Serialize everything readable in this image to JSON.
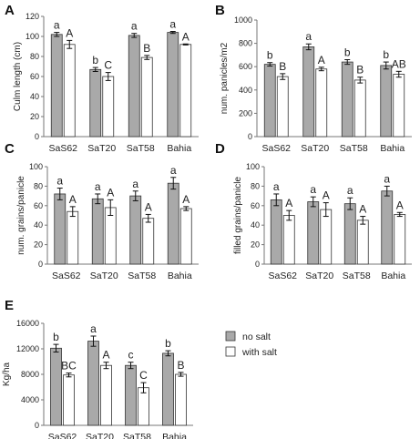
{
  "legend": {
    "entries": [
      {
        "label": "no salt",
        "color": "#a9a9a9"
      },
      {
        "label": "with salt",
        "color": "#ffffff"
      }
    ]
  },
  "chart_data": [
    {
      "panel": "A",
      "type": "bar",
      "categories": [
        "SaS62",
        "SaT20",
        "SaT58",
        "Bahia"
      ],
      "ylabel": "Culm length (cm)",
      "ylim": [
        0,
        120
      ],
      "yticks": [
        0,
        20,
        40,
        60,
        80,
        100,
        120
      ],
      "series": [
        {
          "name": "no salt",
          "color": "#a9a9a9",
          "values": [
            102,
            67,
            101,
            104
          ],
          "errors": [
            2,
            2,
            2,
            1
          ],
          "labels": [
            "a",
            "b",
            "a",
            "a"
          ]
        },
        {
          "name": "with salt",
          "color": "#ffffff",
          "values": [
            92,
            60,
            79,
            92
          ],
          "errors": [
            4,
            4,
            2,
            0.5
          ],
          "labels": [
            "A",
            "C",
            "B",
            "A"
          ]
        }
      ]
    },
    {
      "panel": "B",
      "type": "bar",
      "categories": [
        "SaS62",
        "SaT20",
        "SaT58",
        "Bahia"
      ],
      "ylabel": "num. panicles/m2",
      "ylim": [
        0,
        1000
      ],
      "yticks": [
        0,
        200,
        400,
        600,
        800,
        1000
      ],
      "series": [
        {
          "name": "no salt",
          "color": "#a9a9a9",
          "values": [
            620,
            770,
            640,
            610
          ],
          "errors": [
            15,
            25,
            20,
            30
          ],
          "labels": [
            "b",
            "a",
            "b",
            "b"
          ]
        },
        {
          "name": "with salt",
          "color": "#ffffff",
          "values": [
            515,
            580,
            485,
            535
          ],
          "errors": [
            25,
            15,
            25,
            25
          ],
          "labels": [
            "B",
            "A",
            "B",
            "AB"
          ]
        }
      ]
    },
    {
      "panel": "C",
      "type": "bar",
      "categories": [
        "SaS62",
        "SaT20",
        "SaT58",
        "Bahia"
      ],
      "ylabel": "num. grains/panicle",
      "ylim": [
        0,
        100
      ],
      "yticks": [
        0,
        20,
        40,
        60,
        80,
        100
      ],
      "series": [
        {
          "name": "no salt",
          "color": "#a9a9a9",
          "values": [
            72,
            67,
            70,
            83
          ],
          "errors": [
            6,
            5,
            5,
            6
          ],
          "labels": [
            "a",
            "a",
            "a",
            "a"
          ]
        },
        {
          "name": "with salt",
          "color": "#ffffff",
          "values": [
            54,
            58,
            47,
            57
          ],
          "errors": [
            5,
            8,
            4,
            2
          ],
          "labels": [
            "A",
            "A",
            "A",
            "A"
          ]
        }
      ]
    },
    {
      "panel": "D",
      "type": "bar",
      "categories": [
        "SaS62",
        "SaT20",
        "SaT58",
        "Bahia"
      ],
      "ylabel": "filled grains/panicle",
      "ylim": [
        0,
        100
      ],
      "yticks": [
        0,
        20,
        40,
        60,
        80,
        100
      ],
      "series": [
        {
          "name": "no salt",
          "color": "#a9a9a9",
          "values": [
            66,
            64,
            62,
            75
          ],
          "errors": [
            6,
            5,
            6,
            5
          ],
          "labels": [
            "a",
            "a",
            "a",
            "a"
          ]
        },
        {
          "name": "with salt",
          "color": "#ffffff",
          "values": [
            50,
            56,
            45,
            51
          ],
          "errors": [
            5,
            7,
            4,
            2
          ],
          "labels": [
            "A",
            "A",
            "A",
            "A"
          ]
        }
      ]
    },
    {
      "panel": "E",
      "type": "bar",
      "categories": [
        "SaS62",
        "SaT20",
        "SaT58",
        "Bahia"
      ],
      "ylabel": "Kg/ha",
      "ylim": [
        0,
        16000
      ],
      "yticks": [
        0,
        4000,
        8000,
        12000,
        16000
      ],
      "series": [
        {
          "name": "no salt",
          "color": "#a9a9a9",
          "values": [
            12100,
            13200,
            9400,
            11300
          ],
          "errors": [
            600,
            800,
            500,
            400
          ],
          "labels": [
            "b",
            "a",
            "c",
            "b"
          ]
        },
        {
          "name": "with salt",
          "color": "#ffffff",
          "values": [
            7900,
            9400,
            5900,
            8000
          ],
          "errors": [
            300,
            500,
            800,
            300
          ],
          "labels": [
            "BC",
            "A",
            "C",
            "B"
          ]
        }
      ]
    }
  ]
}
